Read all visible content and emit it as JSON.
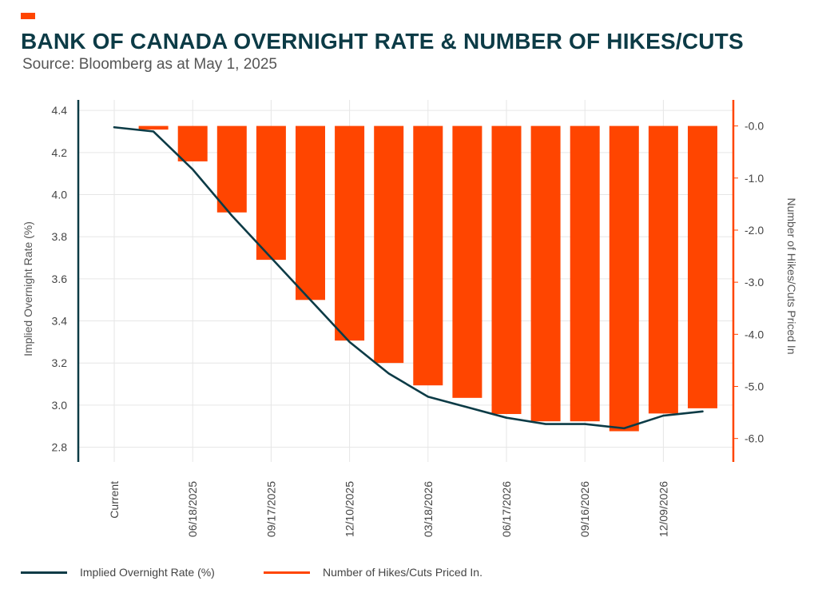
{
  "header": {
    "title": "BANK OF CANADA OVERNIGHT RATE & NUMBER OF HIKES/CUTS",
    "subtitle": "Source: Bloomberg as at May 1, 2025"
  },
  "colors": {
    "line": "#0C3B46",
    "bar": "#FF4500",
    "title": "#0C3B46",
    "grid": "#E6E6E6",
    "left_axis": "#0C3B46",
    "right_axis": "#FF4500"
  },
  "legend": {
    "line_label": "Implied Overnight Rate (%)",
    "bar_label": "Number of Hikes/Cuts Priced In."
  },
  "chart_data": {
    "type": "bar",
    "categories": [
      "Current",
      "",
      "06/18/2025",
      "",
      "09/17/2025",
      "",
      "12/10/2025",
      "",
      "03/18/2026",
      "",
      "06/17/2026",
      "",
      "09/16/2026",
      "",
      "12/09/2026",
      ""
    ],
    "x_tick_labels": [
      "Current",
      "06/18/2025",
      "09/17/2025",
      "12/10/2025",
      "03/18/2026",
      "06/17/2026",
      "09/16/2026",
      "12/09/2026"
    ],
    "series": [
      {
        "name": "Implied Overnight Rate (%)",
        "type": "line",
        "axis": "left",
        "values": [
          4.32,
          4.3,
          4.12,
          3.9,
          3.7,
          3.5,
          3.3,
          3.15,
          3.04,
          2.99,
          2.94,
          2.91,
          2.91,
          2.89,
          2.95,
          2.97
        ]
      },
      {
        "name": "Number of Hikes/Cuts Priced In.",
        "type": "bar",
        "axis": "right",
        "values": [
          null,
          -0.07,
          -0.68,
          -1.66,
          -2.57,
          -3.34,
          -4.12,
          -4.55,
          -4.98,
          -5.22,
          -5.53,
          -5.67,
          -5.67,
          -5.86,
          -5.52,
          -5.42
        ]
      }
    ],
    "y_left": {
      "label": "Implied Overnight Rate (%)",
      "ylim": [
        2.73,
        4.45
      ],
      "ticks": [
        "4.4",
        "4.2",
        "4.0",
        "3.8",
        "3.6",
        "3.4",
        "3.2",
        "3.0",
        "2.8"
      ]
    },
    "y_right": {
      "label": "Number of Hikes/Cuts Priced In",
      "ylim": [
        0.5,
        -6.45
      ],
      "ticks": [
        "-0.0",
        "-1.0",
        "-2.0",
        "-3.0",
        "-4.0",
        "-5.0",
        "-6.0"
      ]
    },
    "grid": true,
    "legend_position": "bottom"
  }
}
